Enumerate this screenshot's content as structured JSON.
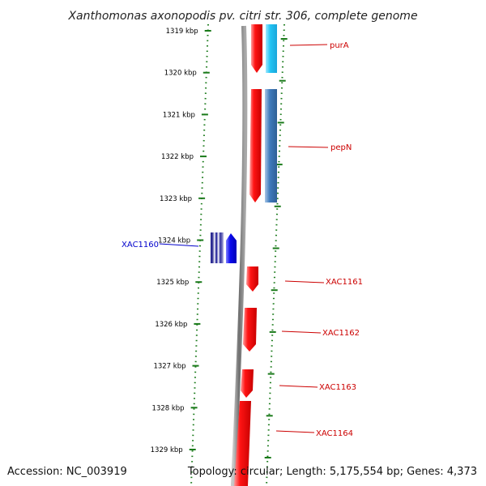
{
  "title": "Xanthomonas axonopodis pv. citri str. 306, complete genome",
  "footer": {
    "accession": "Accession: NC_003919",
    "topology": "Topology: circular; Length: 5,175,554 bp; Genes: 4,373"
  },
  "ruler": {
    "unit": "kbp",
    "ticks": [
      "1319 kbp",
      "1320 kbp",
      "1321 kbp",
      "1322 kbp",
      "1323 kbp",
      "1324 kbp",
      "1325 kbp",
      "1326 kbp",
      "1327 kbp",
      "1328 kbp",
      "1329 kbp"
    ]
  },
  "genes": [
    {
      "label": "purA",
      "strand": "reverse",
      "color": "#dd1111"
    },
    {
      "label": "pepN",
      "strand": "reverse",
      "color": "#dd1111"
    },
    {
      "label": "XAC1160",
      "strand": "forward",
      "color": "#0000cc"
    },
    {
      "label": "XAC1161",
      "strand": "reverse",
      "color": "#dd1111"
    },
    {
      "label": "XAC1162",
      "strand": "reverse",
      "color": "#dd1111"
    },
    {
      "label": "XAC1163",
      "strand": "reverse",
      "color": "#dd1111"
    },
    {
      "label": "XAC1164",
      "strand": "reverse",
      "color": "#dd1111"
    }
  ],
  "colors": {
    "tick": "#1a7a1a",
    "backbone": "#888888",
    "gene_reverse": "#ff1a1a",
    "gene_forward": "#1010ee",
    "alt_light_blue": "#33ccff",
    "alt_steel_blue": "#3d79b8"
  }
}
